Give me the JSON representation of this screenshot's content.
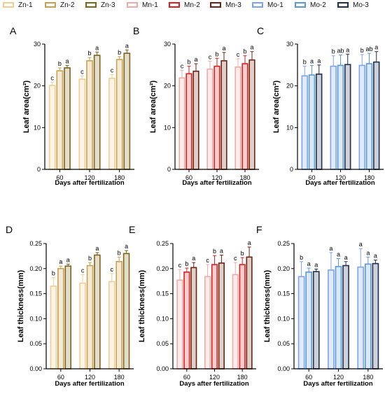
{
  "legend": [
    {
      "label": "Zn-1",
      "color": "#f2cd92"
    },
    {
      "label": "Zn-2",
      "color": "#c9a24e"
    },
    {
      "label": "Zn-3",
      "color": "#7d6418"
    },
    {
      "label": "Mn-1",
      "color": "#f2aaa8"
    },
    {
      "label": "Mn-2",
      "color": "#e01e1e"
    },
    {
      "label": "Mn-3",
      "color": "#6b2410"
    },
    {
      "label": "Mo-1",
      "color": "#7aa3f0"
    },
    {
      "label": "Mo-2",
      "color": "#5b98d6"
    },
    {
      "label": "Mo-3",
      "color": "#1f2f4f"
    }
  ],
  "chart_data": [
    {
      "id": "A",
      "type": "bar",
      "panel_label": "A",
      "categories": [
        "60",
        "120",
        "180"
      ],
      "xlabel": "Days after fertilization",
      "ylabel": "Leaf area(cm²)",
      "ylim": [
        0,
        30
      ],
      "yticks": [
        "0",
        "10",
        "20",
        "30"
      ],
      "series": [
        {
          "name": "Zn-1",
          "color": "#f2cd92",
          "values": [
            20.1,
            21.6,
            21.8
          ],
          "errors": [
            0.8,
            0.8,
            0.9
          ],
          "letters": [
            "c",
            "c",
            "c"
          ]
        },
        {
          "name": "Zn-2",
          "color": "#c9a24e",
          "values": [
            23.6,
            26.0,
            26.3
          ],
          "errors": [
            0.7,
            0.8,
            0.7
          ],
          "letters": [
            "b",
            "b",
            "b"
          ]
        },
        {
          "name": "Zn-3",
          "color": "#7d6418",
          "values": [
            24.3,
            27.3,
            27.8
          ],
          "errors": [
            0.6,
            0.8,
            0.8
          ],
          "letters": [
            "a",
            "a",
            "a"
          ]
        }
      ]
    },
    {
      "id": "B",
      "type": "bar",
      "panel_label": "B",
      "categories": [
        "60",
        "120",
        "180"
      ],
      "xlabel": "Days after fertilization",
      "ylabel": "Leaf area(cm²)",
      "ylim": [
        0,
        30
      ],
      "yticks": [
        "0",
        "10",
        "20",
        "30"
      ],
      "series": [
        {
          "name": "Mn-1",
          "color": "#f2aaa8",
          "values": [
            21.9,
            24.0,
            24.5
          ],
          "errors": [
            1.8,
            1.9,
            2.0
          ],
          "letters": [
            "c",
            "c",
            "c"
          ]
        },
        {
          "name": "Mn-2",
          "color": "#e01e1e",
          "values": [
            22.9,
            24.7,
            25.3
          ],
          "errors": [
            1.8,
            1.9,
            1.9
          ],
          "letters": [
            "b",
            "b",
            "b"
          ]
        },
        {
          "name": "Mn-3",
          "color": "#6b2410",
          "values": [
            23.5,
            26.0,
            26.2
          ],
          "errors": [
            1.8,
            2.0,
            2.0
          ],
          "letters": [
            "a",
            "a",
            "a"
          ]
        }
      ]
    },
    {
      "id": "C",
      "type": "bar",
      "panel_label": "C",
      "categories": [
        "60",
        "120",
        "180"
      ],
      "xlabel": "Days after fertilization",
      "ylabel": "Leaf area(cm²)",
      "ylim": [
        0,
        30
      ],
      "yticks": [
        "0",
        "10",
        "20",
        "30"
      ],
      "series": [
        {
          "name": "Mo-1",
          "color": "#7aa3f0",
          "values": [
            22.4,
            24.7,
            24.9
          ],
          "errors": [
            2.3,
            2.5,
            2.6
          ],
          "letters": [
            "b",
            "b",
            "b"
          ]
        },
        {
          "name": "Mo-2",
          "color": "#5b98d6",
          "values": [
            22.6,
            24.9,
            25.3
          ],
          "errors": [
            2.3,
            2.5,
            2.5
          ],
          "letters": [
            "a",
            "ab",
            "ab"
          ]
        },
        {
          "name": "Mo-3",
          "color": "#1f2f4f",
          "values": [
            22.8,
            25.1,
            25.7
          ],
          "errors": [
            2.2,
            2.5,
            2.5
          ],
          "letters": [
            "a",
            "a",
            "a"
          ]
        }
      ]
    },
    {
      "id": "D",
      "type": "bar",
      "panel_label": "D",
      "categories": [
        "60",
        "120",
        "180"
      ],
      "xlabel": "Days after fertilization",
      "ylabel": "Leaf thickness(mm)",
      "ylim": [
        0,
        0.25
      ],
      "yticks": [
        "0.00",
        "0.05",
        "0.10",
        "0.15",
        "0.20",
        "0.25"
      ],
      "series": [
        {
          "name": "Zn-1",
          "color": "#f2cd92",
          "values": [
            0.165,
            0.171,
            0.174
          ],
          "errors": [
            0.017,
            0.017,
            0.016
          ],
          "letters": [
            "b",
            "c",
            "c"
          ]
        },
        {
          "name": "Zn-2",
          "color": "#c9a24e",
          "values": [
            0.2,
            0.206,
            0.214
          ],
          "errors": [
            0.005,
            0.006,
            0.009
          ],
          "letters": [
            "a",
            "b",
            "b"
          ]
        },
        {
          "name": "Zn-3",
          "color": "#7d6418",
          "values": [
            0.205,
            0.227,
            0.23
          ],
          "errors": [
            0.004,
            0.005,
            0.006
          ],
          "letters": [
            "a",
            "a",
            "a"
          ]
        }
      ]
    },
    {
      "id": "E",
      "type": "bar",
      "panel_label": "E",
      "categories": [
        "60",
        "120",
        "180"
      ],
      "xlabel": "Days after fertilization",
      "ylabel": "Leaf thickness(mm)",
      "ylim": [
        0,
        0.25
      ],
      "yticks": [
        "0.00",
        "0.05",
        "0.10",
        "0.15",
        "0.20",
        "0.25"
      ],
      "series": [
        {
          "name": "Mn-1",
          "color": "#f2aaa8",
          "values": [
            0.177,
            0.184,
            0.188
          ],
          "errors": [
            0.021,
            0.024,
            0.024
          ],
          "letters": [
            "c",
            "c",
            "c"
          ]
        },
        {
          "name": "Mn-2",
          "color": "#e01e1e",
          "values": [
            0.193,
            0.208,
            0.208
          ],
          "errors": [
            0.008,
            0.018,
            0.014
          ],
          "letters": [
            "b",
            "b",
            "b"
          ]
        },
        {
          "name": "Mn-3",
          "color": "#6b2410",
          "values": [
            0.202,
            0.211,
            0.223
          ],
          "errors": [
            0.01,
            0.016,
            0.02
          ],
          "letters": [
            "a",
            "a",
            "a"
          ]
        }
      ]
    },
    {
      "id": "F",
      "type": "bar",
      "panel_label": "F",
      "categories": [
        "60",
        "120",
        "180"
      ],
      "xlabel": "Days after fertilization",
      "ylabel": "Leaf thickness(mm)",
      "ylim": [
        0,
        0.25
      ],
      "yticks": [
        "0.00",
        "0.05",
        "0.10",
        "0.15",
        "0.20",
        "0.25"
      ],
      "series": [
        {
          "name": "Mo-1",
          "color": "#7aa3f0",
          "values": [
            0.184,
            0.197,
            0.203
          ],
          "errors": [
            0.03,
            0.035,
            0.037
          ],
          "letters": [
            "b",
            "a",
            "a"
          ]
        },
        {
          "name": "Mo-2",
          "color": "#5b98d6",
          "values": [
            0.193,
            0.204,
            0.209
          ],
          "errors": [
            0.008,
            0.016,
            0.014
          ],
          "letters": [
            "a",
            "a",
            "a"
          ]
        },
        {
          "name": "Mo-3",
          "color": "#1f2f4f",
          "values": [
            0.194,
            0.206,
            0.21
          ],
          "errors": [
            0.005,
            0.008,
            0.007
          ],
          "letters": [
            "a",
            "a",
            "a"
          ]
        }
      ]
    }
  ]
}
